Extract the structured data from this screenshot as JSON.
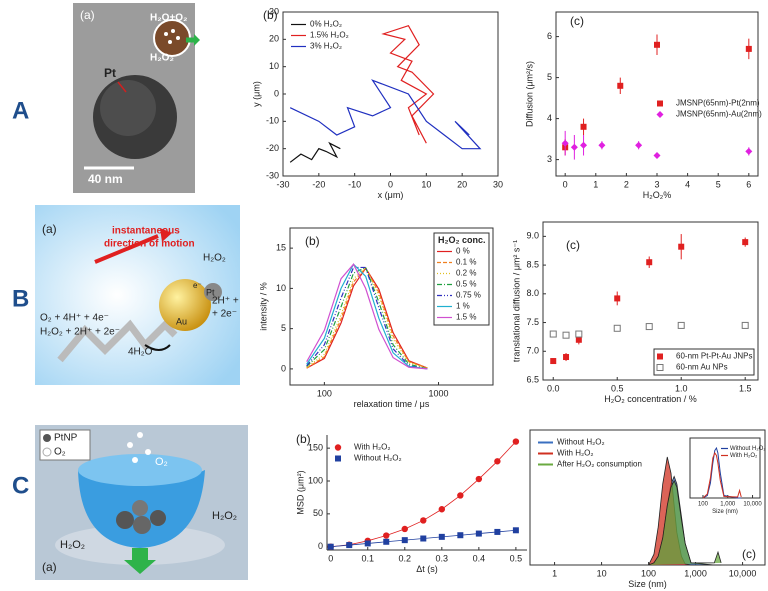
{
  "row_labels": [
    "A",
    "B",
    "C"
  ],
  "image_panels": [
    {
      "label": "(a)",
      "texts": [
        "H₂O+O₂",
        "H₂O₂",
        "Pt",
        "40 nm"
      ]
    },
    {
      "label": "(a)",
      "texts": [
        "instantaneous",
        "direction of motion",
        "H₂O₂",
        "2H⁺ +",
        "+ 2e⁻",
        "O₂ + 4H⁺ + 4e⁻",
        "H₂O₂ + 2H⁺ + 2e⁻",
        "4H₂O",
        "Au",
        "Pt",
        "e⁻"
      ]
    },
    {
      "label": "(a)",
      "texts": [
        "PtNP",
        "O₂",
        "O₂",
        "H₂O₂",
        "H₂O₂"
      ]
    }
  ],
  "chart_data": [
    {
      "type": "line",
      "label": "(b)",
      "xlabel": "x (μm)",
      "ylabel": "y (μm)",
      "xlim": [
        -30,
        30
      ],
      "ylim": [
        -30,
        30
      ],
      "xticks": [
        -30,
        -20,
        -10,
        0,
        10,
        20,
        30
      ],
      "yticks": [
        -30,
        -20,
        -10,
        0,
        10,
        20,
        30
      ],
      "legend": "upper-left",
      "series": [
        {
          "name": "0% H₂O₂",
          "color": "#111111",
          "x": [
            -28,
            -25,
            -22,
            -20,
            -18,
            -15,
            -17,
            -14
          ],
          "values": [
            -25,
            -22,
            -24,
            -20,
            -21,
            -23,
            -18,
            -20
          ]
        },
        {
          "name": "1.5% H₂O₂",
          "color": "#e02020",
          "x": [
            8,
            5,
            10,
            3,
            6,
            0,
            4,
            -2,
            5,
            8,
            2,
            6,
            12,
            6,
            10
          ],
          "values": [
            -15,
            -5,
            0,
            5,
            12,
            15,
            20,
            22,
            25,
            18,
            10,
            8,
            0,
            -8,
            -18
          ]
        },
        {
          "name": "3% H₂O₂",
          "color": "#2030c0",
          "x": [
            -28,
            -20,
            -15,
            -10,
            -12,
            -5,
            0,
            -5,
            5,
            10,
            15,
            20,
            25,
            18,
            22
          ],
          "values": [
            -5,
            -10,
            -15,
            -12,
            -5,
            -8,
            -5,
            5,
            0,
            -10,
            -15,
            -20,
            -20,
            -10,
            -15
          ]
        }
      ]
    },
    {
      "type": "scatter",
      "label": "(c)",
      "xlabel": "H₂O₂%",
      "ylabel": "Diffusion (μm²/s)",
      "xlim": [
        -0.3,
        6.3
      ],
      "ylim": [
        2.6,
        6.6
      ],
      "xticks": [
        0,
        1,
        2,
        3,
        4,
        5,
        6
      ],
      "yticks": [
        3,
        4,
        5,
        6
      ],
      "legend": "center-right",
      "series": [
        {
          "name": "JMSNP(65nm)-Pt(2nm)",
          "color": "#e02020",
          "marker": "square",
          "x": [
            0,
            0.6,
            1.8,
            3,
            6
          ],
          "values": [
            3.3,
            3.8,
            4.8,
            5.8,
            5.7
          ],
          "errors": [
            0.2,
            0.2,
            0.2,
            0.25,
            0.25
          ]
        },
        {
          "name": "JMSNP(65nm)-Au(2nm)",
          "color": "#e020e0",
          "marker": "diamond",
          "x": [
            0,
            0.3,
            0.6,
            1.2,
            2.4,
            3,
            6
          ],
          "values": [
            3.4,
            3.3,
            3.35,
            3.35,
            3.35,
            3.1,
            3.2
          ],
          "errors": [
            0.3,
            0.3,
            0.25,
            0.1,
            0.1,
            0.05,
            0.1
          ]
        }
      ]
    },
    {
      "type": "line",
      "label": "(b)",
      "xlabel": "relaxation time / μs",
      "ylabel": "intensity / %",
      "xlog": true,
      "xlim": [
        50,
        3000
      ],
      "ylim": [
        -2,
        17.5
      ],
      "xticks": [
        100,
        1000
      ],
      "yticks": [
        0,
        5,
        10,
        15
      ],
      "legend": "upper-right",
      "legend_title": "H₂O₂ conc.",
      "series": [
        {
          "name": "0 %",
          "color": "#e02020",
          "x": [
            70,
            100,
            140,
            180,
            230,
            300,
            400,
            550,
            800
          ],
          "values": [
            0.1,
            1.3,
            5.7,
            10.3,
            12.5,
            9.9,
            4.5,
            1.0,
            0.1
          ]
        },
        {
          "name": "0.1 %",
          "color": "#f08020",
          "dash": "4 2",
          "x": [
            70,
            100,
            140,
            180,
            230,
            300,
            400,
            550,
            800
          ],
          "values": [
            0.1,
            1.5,
            6.2,
            10.8,
            12.5,
            9.5,
            4.1,
            0.9,
            0.1
          ]
        },
        {
          "name": "0.2 %",
          "color": "#e0c020",
          "dash": "1 2",
          "x": [
            70,
            100,
            140,
            180,
            230,
            300,
            400,
            550,
            800
          ],
          "values": [
            0.2,
            1.8,
            6.7,
            11.2,
            12.6,
            9.1,
            3.7,
            0.8,
            0.1
          ]
        },
        {
          "name": "0.5 %",
          "color": "#20a040",
          "dash": "5 2 1 2",
          "x": [
            70,
            100,
            140,
            180,
            230,
            300,
            400,
            550,
            800
          ],
          "values": [
            0.3,
            2.4,
            7.7,
            11.9,
            12.6,
            8.3,
            3.0,
            0.6,
            0
          ]
        },
        {
          "name": "0.75 %",
          "color": "#3030c0",
          "dash": "5 2 1 2 1 2",
          "x": [
            70,
            100,
            140,
            180,
            230,
            300,
            400,
            550,
            800
          ],
          "values": [
            0.4,
            3.0,
            8.8,
            12.6,
            12.6,
            7.6,
            2.5,
            0.4,
            0
          ]
        },
        {
          "name": "1 %",
          "color": "#20b0d0",
          "x": [
            70,
            100,
            140,
            180,
            230,
            300,
            400,
            550,
            800
          ],
          "values": [
            0.6,
            3.8,
            10.0,
            13.0,
            11.5,
            6.3,
            2.0,
            0.3,
            0
          ]
        },
        {
          "name": "1.5 %",
          "color": "#d050d0",
          "x": [
            70,
            100,
            140,
            180,
            230,
            300,
            400,
            550,
            800
          ],
          "values": [
            0.9,
            4.8,
            11.2,
            13.0,
            10.0,
            4.9,
            1.4,
            0.2,
            0
          ]
        }
      ]
    },
    {
      "type": "scatter",
      "label": "(c)",
      "xlabel": "H₂O₂ concentration / %",
      "ylabel": "translational diffusion / μm² s⁻¹",
      "xlim": [
        -0.08,
        1.6
      ],
      "ylim": [
        6.5,
        9.25
      ],
      "xticks": [
        {
          "value": 0,
          "label": "0.0"
        },
        0.5,
        {
          "value": 1,
          "label": "1.0"
        },
        1.5
      ],
      "yticks": [
        6.5,
        {
          "value": 7,
          "label": "7.0"
        },
        7.5,
        {
          "value": 8,
          "label": "8.0"
        },
        8.5,
        {
          "value": 9,
          "label": "9.0"
        }
      ],
      "legend": "lower-right",
      "series": [
        {
          "name": "60-nm Pt-Pt-Au JNPs",
          "color": "#e02020",
          "marker": "square",
          "x": [
            0,
            0.1,
            0.2,
            0.5,
            0.75,
            1,
            1.5
          ],
          "values": [
            6.83,
            6.9,
            7.2,
            7.92,
            8.55,
            8.82,
            8.9
          ],
          "errors": [
            0.05,
            0.07,
            0.08,
            0.12,
            0.1,
            0.22,
            0.08
          ]
        },
        {
          "name": "60-nm Au NPs",
          "color": "#777777",
          "marker": "open-square",
          "x": [
            0,
            0.1,
            0.2,
            0.5,
            0.75,
            1,
            1.5
          ],
          "values": [
            7.3,
            7.28,
            7.3,
            7.4,
            7.43,
            7.45,
            7.45
          ]
        }
      ]
    },
    {
      "type": "scatter",
      "label": "(b)",
      "xlabel": "Δt (s)",
      "ylabel": "MSD (μm²)",
      "connect": true,
      "xlim": [
        -0.01,
        0.53
      ],
      "ylim": [
        -5,
        170
      ],
      "xticks": [
        0,
        0.1,
        0.2,
        0.3,
        0.4,
        0.5
      ],
      "yticks": [
        0,
        50,
        100,
        150
      ],
      "legend": "upper-left",
      "series": [
        {
          "name": "With H₂O₂",
          "color": "#e02020",
          "marker": "circle",
          "x": [
            0,
            0.05,
            0.1,
            0.15,
            0.2,
            0.25,
            0.3,
            0.35,
            0.4,
            0.45,
            0.5
          ],
          "values": [
            0,
            3,
            9,
            17,
            27,
            40,
            57,
            78,
            103,
            130,
            160
          ]
        },
        {
          "name": "Without H₂O₂",
          "color": "#2040a0",
          "marker": "square",
          "x": [
            0,
            0.05,
            0.1,
            0.15,
            0.2,
            0.25,
            0.3,
            0.35,
            0.4,
            0.45,
            0.5
          ],
          "values": [
            0,
            2.5,
            5,
            7.5,
            10,
            12.5,
            15,
            17.5,
            20,
            22.5,
            25
          ]
        }
      ]
    },
    {
      "type": "area",
      "label": "(c)",
      "xlabel": "Size (nm)",
      "xlog": true,
      "xlim": [
        0.3,
        30000
      ],
      "ylim": [
        0,
        1.25
      ],
      "xticks": [
        1,
        10,
        100,
        {
          "value": 1000,
          "label": "1,000"
        },
        {
          "value": 10000,
          "label": "10,000"
        }
      ],
      "legend": "upper-left",
      "series": [
        {
          "name": "Without H₂O₂",
          "color": "#3a6fc0",
          "x": [
            100,
            130,
            160,
            200,
            250,
            300,
            350,
            400,
            500,
            600,
            800,
            2500,
            3000,
            3500
          ],
          "values": [
            0,
            0.02,
            0.08,
            0.25,
            0.55,
            0.75,
            0.82,
            0.75,
            0.45,
            0.2,
            0.02,
            0,
            0,
            0
          ]
        },
        {
          "name": "With H₂O₂",
          "color": "#d03020",
          "x": [
            100,
            130,
            160,
            200,
            250,
            300,
            350,
            400,
            500,
            600,
            800,
            2500,
            3000,
            3500
          ],
          "values": [
            0,
            0.1,
            0.35,
            0.75,
            1.0,
            0.85,
            0.55,
            0.3,
            0.08,
            0.01,
            0,
            0,
            0,
            0
          ]
        },
        {
          "name": "After H₂O₂ consumption",
          "color": "#6aaa40",
          "x": [
            100,
            130,
            160,
            200,
            250,
            300,
            350,
            400,
            500,
            600,
            800,
            2500,
            3000,
            3500
          ],
          "values": [
            0,
            0.02,
            0.08,
            0.25,
            0.55,
            0.72,
            0.78,
            0.72,
            0.42,
            0.2,
            0.02,
            0.02,
            0.12,
            0.02
          ]
        }
      ]
    },
    {
      "type": "line",
      "xlabel": "Size (nm)",
      "xlog": true,
      "xlim": [
        30,
        20000
      ],
      "ylim": [
        0,
        1.2
      ],
      "xticks": [
        100,
        {
          "value": 1000,
          "label": "1,000"
        },
        {
          "value": 10000,
          "label": "10,000"
        }
      ],
      "legend": "upper-right",
      "series": [
        {
          "name": "Without H₂O₂",
          "color": "#2040a0",
          "x": [
            100,
            150,
            200,
            250,
            300,
            350,
            400,
            500,
            700,
            2500,
            3000,
            3500
          ],
          "values": [
            0,
            0.05,
            0.3,
            0.7,
            0.95,
            1.0,
            0.9,
            0.5,
            0.05,
            0,
            0,
            0
          ]
        },
        {
          "name": "With H₂O₂",
          "color": "#d03020",
          "x": [
            100,
            150,
            200,
            250,
            300,
            350,
            400,
            500,
            700,
            2500,
            3000,
            3500
          ],
          "values": [
            0,
            0.08,
            0.4,
            0.8,
            0.9,
            0.85,
            0.7,
            0.35,
            0.03,
            0.02,
            0.15,
            0.02
          ]
        }
      ]
    }
  ]
}
